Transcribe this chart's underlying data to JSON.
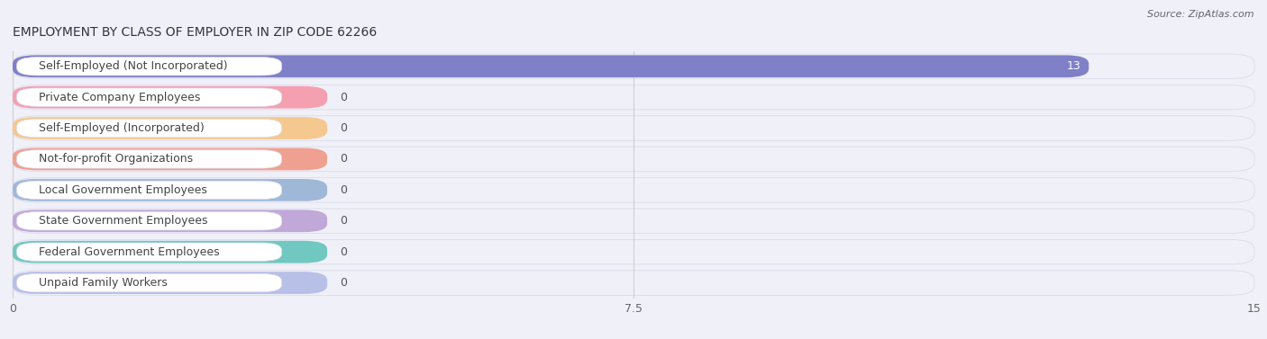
{
  "title": "EMPLOYMENT BY CLASS OF EMPLOYER IN ZIP CODE 62266",
  "source": "Source: ZipAtlas.com",
  "categories": [
    "Self-Employed (Not Incorporated)",
    "Private Company Employees",
    "Self-Employed (Incorporated)",
    "Not-for-profit Organizations",
    "Local Government Employees",
    "State Government Employees",
    "Federal Government Employees",
    "Unpaid Family Workers"
  ],
  "values": [
    13,
    0,
    0,
    0,
    0,
    0,
    0,
    0
  ],
  "bar_colors": [
    "#8080c8",
    "#f4a0b0",
    "#f5c890",
    "#f0a090",
    "#a0b8d8",
    "#c0a8d8",
    "#70c8c0",
    "#b8c0e8"
  ],
  "xlim": [
    0,
    15
  ],
  "xticks": [
    0,
    7.5,
    15
  ],
  "background_color": "#f0f0f8",
  "row_bg_light": "#ffffff",
  "row_bg_dark": "#ebebf3",
  "bar_row_color": "#e8e8f4",
  "title_fontsize": 10,
  "label_fontsize": 9,
  "value_fontsize": 9
}
